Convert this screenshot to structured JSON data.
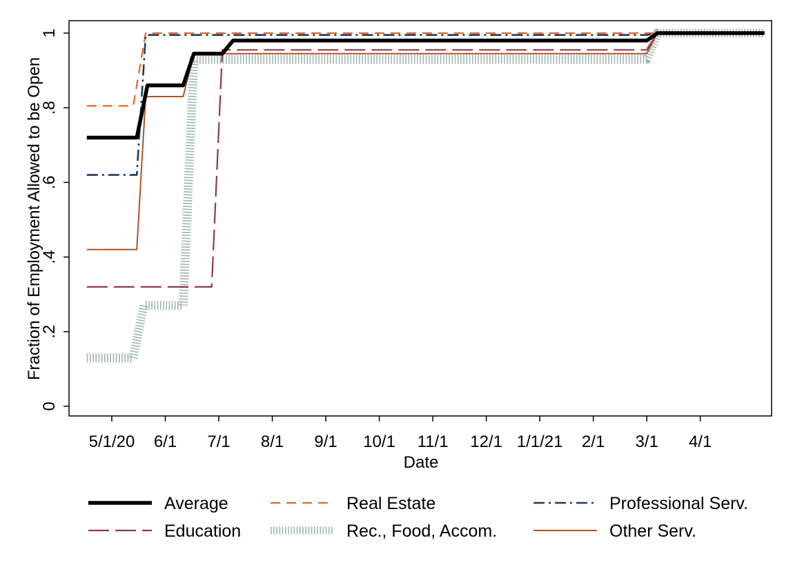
{
  "chart_data": {
    "type": "line",
    "title": "",
    "xlabel": "Date",
    "ylabel": "Fraction of Employment Allowed to be Open",
    "ylim": [
      0,
      1
    ],
    "xlim": [
      -12,
      185
    ],
    "y_ticks": [
      {
        "value": 0,
        "label": "0"
      },
      {
        "value": 0.2,
        "label": ".2"
      },
      {
        "value": 0.4,
        "label": ".4"
      },
      {
        "value": 0.6,
        "label": ".6"
      },
      {
        "value": 0.8,
        "label": ".8"
      },
      {
        "value": 1,
        "label": "1"
      }
    ],
    "x_ticks": [
      {
        "value": 0,
        "label": "5/1/20"
      },
      {
        "value": 15,
        "label": "6/1"
      },
      {
        "value": 30,
        "label": "7/1"
      },
      {
        "value": 45,
        "label": "8/1"
      },
      {
        "value": 60,
        "label": "9/1"
      },
      {
        "value": 75,
        "label": "10/1"
      },
      {
        "value": 90,
        "label": "11/1"
      },
      {
        "value": 105,
        "label": "12/1"
      },
      {
        "value": 120,
        "label": "1/1/21"
      },
      {
        "value": 135,
        "label": "2/1"
      },
      {
        "value": 150,
        "label": "3/1"
      },
      {
        "value": 165,
        "label": "4/1"
      }
    ],
    "series": [
      {
        "name": "Average",
        "color": "#000000",
        "style": "thick-solid",
        "x": [
          -7,
          7,
          10,
          20,
          23,
          31,
          34,
          150,
          153,
          183
        ],
        "y": [
          0.72,
          0.72,
          0.86,
          0.86,
          0.945,
          0.945,
          0.98,
          0.98,
          1.0,
          1.0
        ]
      },
      {
        "name": "Real Estate",
        "color": "#e8642a",
        "style": "dashed",
        "x": [
          -7,
          6,
          9.5,
          183
        ],
        "y": [
          0.805,
          0.805,
          1.0,
          1.0
        ]
      },
      {
        "name": "Professional Serv.",
        "color": "#1f3a5f",
        "style": "dash-dot",
        "x": [
          -7,
          7,
          9.5,
          150,
          153,
          183
        ],
        "y": [
          0.62,
          0.62,
          0.995,
          0.995,
          1.0,
          1.0
        ]
      },
      {
        "name": "Education",
        "color": "#8b3a4a",
        "style": "long-dash",
        "x": [
          -7,
          28,
          31,
          150,
          153,
          183
        ],
        "y": [
          0.32,
          0.32,
          0.955,
          0.955,
          1.0,
          1.0
        ]
      },
      {
        "name": "Rec., Food, Accom.",
        "color": "#9fb5b0",
        "style": "hatched",
        "x": [
          -7,
          6,
          9,
          20,
          23,
          150,
          153,
          183
        ],
        "y": [
          0.13,
          0.13,
          0.27,
          0.27,
          0.93,
          0.93,
          1.0,
          1.0
        ]
      },
      {
        "name": "Other Serv.",
        "color": "#b0522a",
        "style": "thin-solid",
        "x": [
          -7,
          7,
          9.5,
          20,
          23,
          150,
          153,
          183
        ],
        "y": [
          0.42,
          0.42,
          0.83,
          0.83,
          0.945,
          0.945,
          1.0,
          1.0
        ]
      }
    ],
    "legend_position": "bottom",
    "grid": false
  }
}
